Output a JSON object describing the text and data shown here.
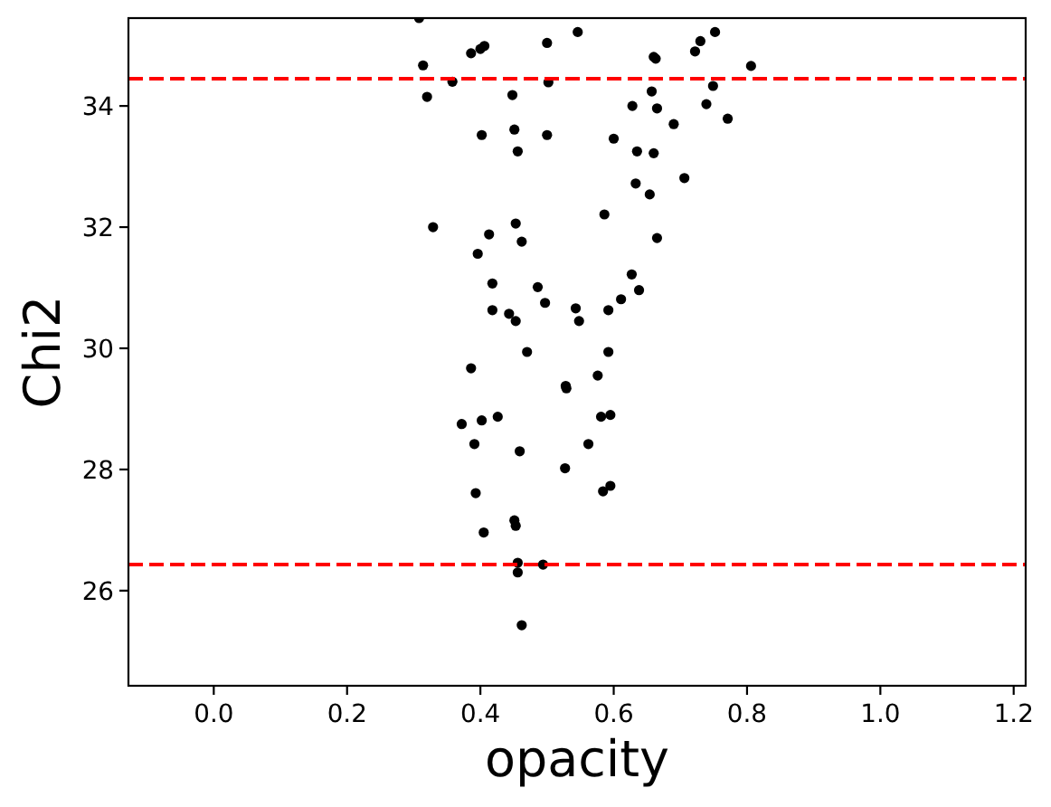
{
  "chart_data": {
    "type": "scatter",
    "xlabel": "opacity",
    "ylabel": "Chi2",
    "x": [
      0.308,
      0.314,
      0.32,
      0.358,
      0.386,
      0.4,
      0.406,
      0.402,
      0.448,
      0.451,
      0.456,
      0.5,
      0.502,
      0.5,
      0.546,
      0.66,
      0.663,
      0.657,
      0.628,
      0.665,
      0.69,
      0.6,
      0.635,
      0.66,
      0.633,
      0.654,
      0.706,
      0.722,
      0.73,
      0.752,
      0.749,
      0.739,
      0.771,
      0.806,
      0.586,
      0.665,
      0.329,
      0.413,
      0.453,
      0.462,
      0.396,
      0.627,
      0.638,
      0.611,
      0.592,
      0.543,
      0.548,
      0.418,
      0.486,
      0.497,
      0.418,
      0.443,
      0.453,
      0.47,
      0.592,
      0.386,
      0.576,
      0.528,
      0.529,
      0.426,
      0.402,
      0.372,
      0.581,
      0.595,
      0.391,
      0.459,
      0.562,
      0.527,
      0.393,
      0.584,
      0.595,
      0.405,
      0.451,
      0.453,
      0.456,
      0.456,
      0.494,
      0.462
    ],
    "values": [
      35.45,
      34.67,
      34.15,
      34.4,
      34.87,
      34.94,
      34.99,
      33.52,
      34.18,
      33.61,
      33.25,
      35.04,
      34.39,
      33.52,
      35.22,
      34.81,
      34.78,
      34.24,
      34.0,
      33.96,
      33.7,
      33.46,
      33.25,
      33.22,
      32.72,
      32.54,
      32.81,
      34.9,
      35.07,
      35.22,
      34.33,
      34.03,
      33.79,
      34.66,
      32.21,
      31.82,
      32.0,
      31.88,
      32.06,
      31.76,
      31.56,
      31.22,
      30.96,
      30.81,
      30.63,
      30.66,
      30.45,
      31.07,
      31.01,
      30.75,
      30.63,
      30.57,
      30.45,
      29.94,
      29.94,
      29.67,
      29.55,
      29.38,
      29.34,
      28.87,
      28.81,
      28.75,
      28.87,
      28.9,
      28.42,
      28.3,
      28.42,
      28.02,
      27.61,
      27.64,
      27.73,
      26.96,
      27.16,
      27.07,
      26.46,
      26.3,
      26.43,
      25.43
    ],
    "color": "#000000",
    "marker": "circle",
    "xlim": [
      -0.128,
      1.218
    ],
    "ylim": [
      24.43,
      35.45
    ],
    "xticks": [
      {
        "value": 0,
        "label": "0.0"
      },
      0.2,
      0.4,
      0.6,
      0.8,
      {
        "value": 1,
        "label": "1.0"
      },
      1.2
    ],
    "yticks": [
      26,
      28,
      30,
      32,
      34
    ],
    "ref_lines": [
      {
        "axis": "y",
        "value": 34.45,
        "color": "#ff0000",
        "line_style": "dashed"
      },
      {
        "axis": "y",
        "value": 26.43,
        "color": "#ff0000",
        "line_style": "dashed"
      }
    ]
  }
}
